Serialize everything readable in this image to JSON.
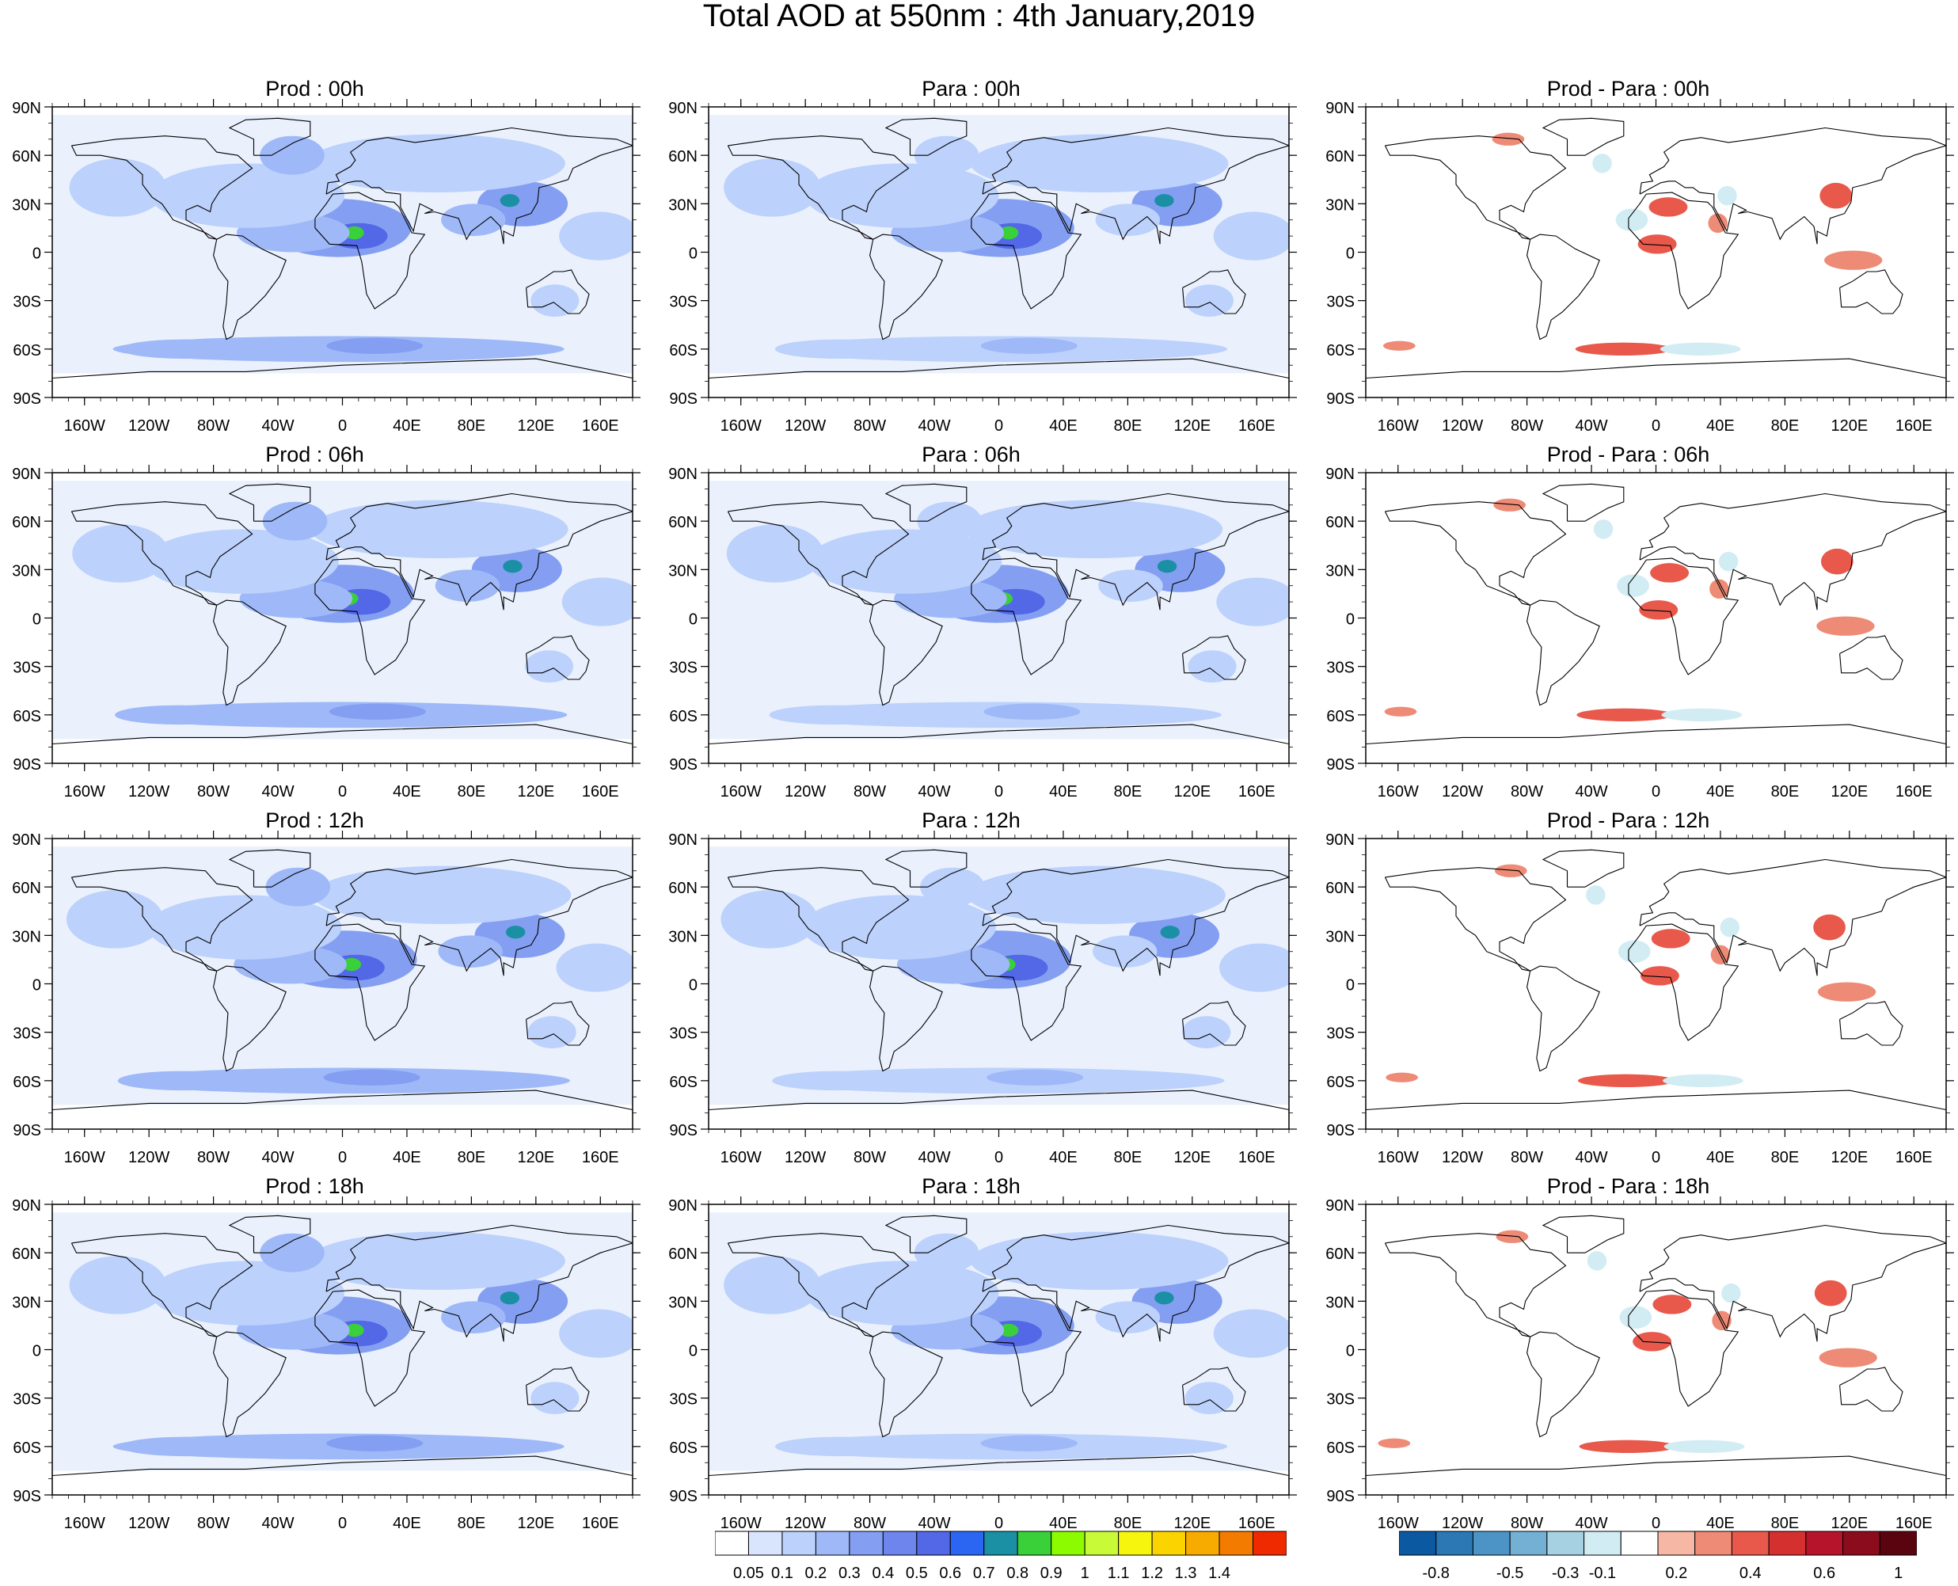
{
  "title": "Total AOD at 550nm : 4th January,2019",
  "panels": [
    {
      "title": "Prod : 00h",
      "kind": "aod"
    },
    {
      "title": "Para : 00h",
      "kind": "aod"
    },
    {
      "title": "Prod - Para : 00h",
      "kind": "diff"
    },
    {
      "title": "Prod : 06h",
      "kind": "aod"
    },
    {
      "title": "Para : 06h",
      "kind": "aod"
    },
    {
      "title": "Prod - Para : 06h",
      "kind": "diff"
    },
    {
      "title": "Prod : 12h",
      "kind": "aod"
    },
    {
      "title": "Para : 12h",
      "kind": "aod"
    },
    {
      "title": "Prod - Para : 12h",
      "kind": "diff"
    },
    {
      "title": "Prod : 18h",
      "kind": "aod"
    },
    {
      "title": "Para : 18h",
      "kind": "aod"
    },
    {
      "title": "Prod - Para : 18h",
      "kind": "diff"
    }
  ],
  "lat_labels": [
    "90N",
    "60N",
    "30N",
    "0",
    "30S",
    "60S",
    "90S"
  ],
  "lon_labels": [
    "160W",
    "120W",
    "80W",
    "40W",
    "0",
    "40E",
    "80E",
    "120E",
    "160E"
  ],
  "aod_colorbar": {
    "labels": [
      "0.05",
      "0.1",
      "0.2",
      "0.3",
      "0.4",
      "0.5",
      "0.6",
      "0.7",
      "0.8",
      "0.9",
      "1",
      "1.1",
      "1.2",
      "1.3",
      "1.4"
    ],
    "colors": [
      "#ffffff",
      "#d9e5fc",
      "#bcd1fb",
      "#9fb9f8",
      "#849ff2",
      "#6d85ec",
      "#5268e6",
      "#2a66f2",
      "#1b8fa3",
      "#3ad03a",
      "#8cfb00",
      "#c8fa38",
      "#f5f50e",
      "#fbd400",
      "#f7ab00",
      "#f37b00",
      "#f02a00"
    ]
  },
  "diff_colorbar": {
    "labels": [
      "-0.8",
      "-0.5",
      "-0.3",
      "-0.1",
      "0.2",
      "0.4",
      "0.6",
      "1"
    ],
    "colors": [
      "#0b5aa1",
      "#2b78b5",
      "#4c94c6",
      "#74b0d4",
      "#a5d1e2",
      "#d2ecf4",
      "#ffffff",
      "#f6b8a5",
      "#ee8b76",
      "#e8594b",
      "#d53030",
      "#b5142a",
      "#8b0c1c",
      "#5a0410"
    ]
  }
}
